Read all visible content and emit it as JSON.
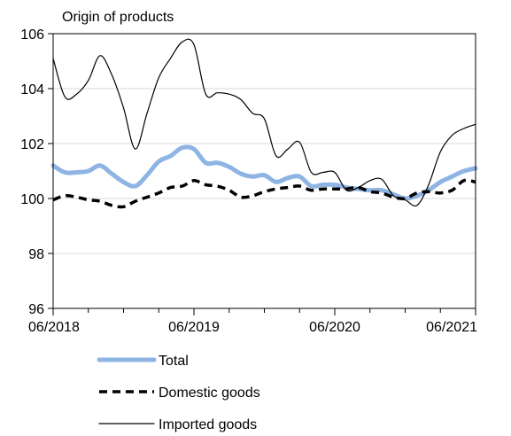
{
  "chart_data": {
    "type": "line",
    "title": "Origin of products",
    "xlabel": "",
    "ylabel": "",
    "ylim": [
      96,
      106
    ],
    "yticks": [
      96,
      98,
      100,
      102,
      104,
      106
    ],
    "x_tick_labels": [
      "06/2018",
      "06/2019",
      "06/2020",
      "06/2021"
    ],
    "x_months": [
      "2018-06",
      "2018-07",
      "2018-08",
      "2018-09",
      "2018-10",
      "2018-11",
      "2018-12",
      "2019-01",
      "2019-02",
      "2019-03",
      "2019-04",
      "2019-05",
      "2019-06",
      "2019-07",
      "2019-08",
      "2019-09",
      "2019-10",
      "2019-11",
      "2019-12",
      "2020-01",
      "2020-02",
      "2020-03",
      "2020-04",
      "2020-05",
      "2020-06",
      "2020-07",
      "2020-08",
      "2020-09",
      "2020-10",
      "2020-11",
      "2020-12",
      "2021-01",
      "2021-02",
      "2021-03",
      "2021-04",
      "2021-05",
      "2021-06"
    ],
    "grid": "horizontal",
    "legend_position": "bottom",
    "series": [
      {
        "name": "Total",
        "color": "#8eb4e3",
        "style": "thick",
        "values": [
          101.2,
          100.95,
          100.95,
          101.0,
          101.2,
          100.9,
          100.6,
          100.45,
          100.85,
          101.35,
          101.55,
          101.85,
          101.8,
          101.3,
          101.3,
          101.15,
          100.9,
          100.8,
          100.85,
          100.6,
          100.75,
          100.8,
          100.45,
          100.5,
          100.5,
          100.4,
          100.35,
          100.3,
          100.3,
          100.15,
          100.0,
          100.1,
          100.3,
          100.6,
          100.8,
          101.0,
          101.1
        ]
      },
      {
        "name": "Domestic goods",
        "color": "#000000",
        "style": "dashed",
        "values": [
          99.95,
          100.1,
          100.05,
          99.95,
          99.9,
          99.75,
          99.7,
          99.9,
          100.05,
          100.2,
          100.4,
          100.45,
          100.65,
          100.5,
          100.45,
          100.3,
          100.05,
          100.1,
          100.25,
          100.35,
          100.4,
          100.45,
          100.3,
          100.35,
          100.35,
          100.35,
          100.4,
          100.25,
          100.2,
          100.05,
          100.0,
          100.2,
          100.25,
          100.2,
          100.3,
          100.65,
          100.6
        ]
      },
      {
        "name": "Imported goods",
        "color": "#000000",
        "style": "thin",
        "values": [
          105.1,
          103.7,
          103.8,
          104.3,
          105.2,
          104.5,
          103.3,
          101.8,
          103.1,
          104.4,
          105.1,
          105.7,
          105.6,
          103.8,
          103.85,
          103.8,
          103.6,
          103.1,
          102.9,
          101.55,
          101.8,
          102.05,
          100.95,
          100.95,
          100.95,
          100.3,
          100.4,
          100.65,
          100.7,
          100.1,
          99.95,
          99.75,
          100.5,
          101.7,
          102.3,
          102.55,
          102.7
        ]
      }
    ]
  }
}
